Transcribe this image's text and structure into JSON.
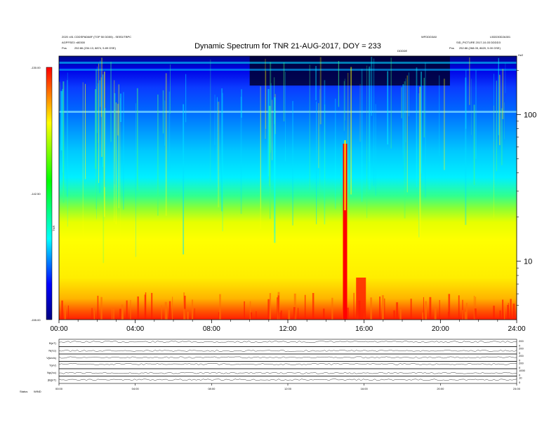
{
  "header": {
    "left_line1": "2020 ×81 CDDSPAD68F (TOP 50 DD55) - SEED/TBPC",
    "left_line2": "AGPFSE3 ×80300",
    "left_line3_label": "Pos",
    "left_line3_value": "252.86 (234.13, 8874, 5.89 GSE)",
    "right_top_left": "WFDDD3A0",
    "right_top_right": "L5DD30D2A301",
    "right_line2": "SID_PICTURE 2017-10-03 DDDD3",
    "right_line3_label": "Pos",
    "right_line3_value": "252.86 (268.05, 8620, 5.00 GSE)",
    "center_small": "DDDDE",
    "far_right_small": "Hz2"
  },
  "chart_data": [
    {
      "type": "heatmap",
      "title": "Dynamic Spectrum for TNR 21-AUG-2017, DOY = 233",
      "xlabel": "",
      "ylabel": "",
      "x_tick_labels": [
        "00:00",
        "04:00",
        "08:00",
        "12:00",
        "16:00",
        "20:00",
        "24:00"
      ],
      "x_ticks_hours": [
        0,
        4,
        8,
        12,
        16,
        20,
        24
      ],
      "xlim": [
        0,
        24
      ],
      "y_scale": "log",
      "y_tick_labels": [
        "100",
        "10"
      ],
      "y_ticks": [
        100,
        10
      ],
      "ylim": [
        4,
        250
      ],
      "colorbar": {
        "labels": [
          "-130.00",
          "-142.50",
          "-155.00"
        ],
        "values": [
          -130,
          -142.5,
          -155
        ],
        "label": "TNR",
        "colormap": [
          "#000080",
          "#0000ff",
          "#00ffff",
          "#00ff00",
          "#ffff00",
          "#ff0000"
        ]
      },
      "bursts": [
        {
          "time_hours": 15.0,
          "label": ""
        },
        {
          "time_hours": 15.8,
          "label": ""
        }
      ],
      "grid": false
    },
    {
      "type": "line",
      "title": "",
      "panels": [
        {
          "label": "B(nT)",
          "right_top": "200",
          "right_bottom": "0"
        },
        {
          "label": "N(/cc)",
          "right_top": "200",
          "right_bottom": "0"
        },
        {
          "label": "V(km/s)",
          "right_top": "200",
          "right_bottom": "0"
        },
        {
          "label": "T(eV)",
          "right_top": "200",
          "right_bottom": "0"
        },
        {
          "label": "Np(/cc)",
          "right_top": "1000",
          "right_bottom": "0"
        },
        {
          "label": "|B|(nT)",
          "right_top": "10",
          "right_bottom": "0"
        }
      ],
      "x_tick_labels": [
        "00:00",
        "04:00",
        "08:00",
        "12:00",
        "16:00",
        "20:00",
        "24:00"
      ],
      "xlim": [
        0,
        24
      ],
      "footer_label": "Status",
      "footer_value": "WIND"
    }
  ],
  "colors": {
    "background": "#ffffff",
    "burst": "#ff0000",
    "axis": "#000000"
  }
}
